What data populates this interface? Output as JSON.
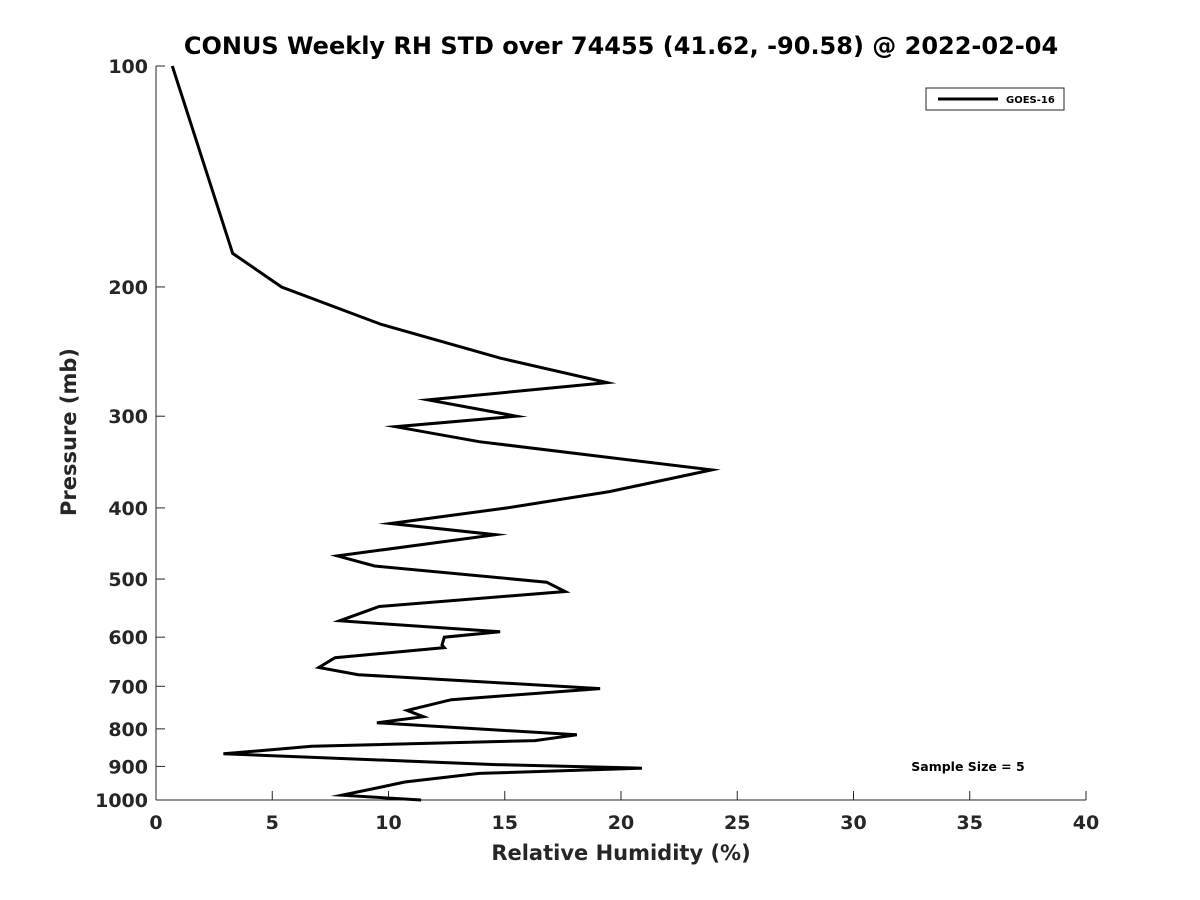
{
  "chart_data": {
    "type": "line",
    "title": "CONUS Weekly RH STD over 74455 (41.62, -90.58) @ 2022-02-04",
    "xlabel": "Relative Humidity (%)",
    "ylabel": "Pressure (mb)",
    "xlim": [
      0,
      40
    ],
    "ylim": [
      100,
      1000
    ],
    "yscale": "log",
    "y_reversed": true,
    "x_ticks": [
      0,
      5,
      10,
      15,
      20,
      25,
      30,
      35,
      40
    ],
    "y_ticks": [
      100,
      200,
      300,
      400,
      500,
      600,
      700,
      800,
      900,
      1000
    ],
    "grid": false,
    "legend_position": "top-right",
    "annotation": "Sample Size = 5",
    "series": [
      {
        "name": "GOES-16",
        "color": "#000000",
        "x": [
          0.7,
          3.3,
          5.4,
          9.7,
          14.8,
          19.4,
          11.7,
          15.5,
          10.3,
          13.9,
          23.9,
          19.5,
          15.1,
          10.1,
          14.6,
          7.8,
          9.4,
          16.8,
          17.6,
          9.6,
          7.9,
          14.8,
          12.4,
          12.3,
          12.4,
          7.7,
          7.0,
          8.7,
          19.1,
          12.7,
          10.8,
          11.5,
          9.5,
          18.1,
          16.3,
          6.7,
          2.9,
          14.6,
          20.9,
          13.9,
          10.7,
          9.7,
          8.0,
          11.4
        ],
        "y": [
          100,
          180,
          200,
          225,
          250,
          270,
          285,
          300,
          310,
          325,
          355,
          380,
          400,
          420,
          435,
          465,
          480,
          505,
          520,
          545,
          570,
          590,
          600,
          615,
          620,
          640,
          660,
          675,
          705,
          730,
          755,
          770,
          785,
          815,
          830,
          845,
          865,
          895,
          905,
          920,
          945,
          960,
          985,
          1000
        ]
      }
    ]
  }
}
